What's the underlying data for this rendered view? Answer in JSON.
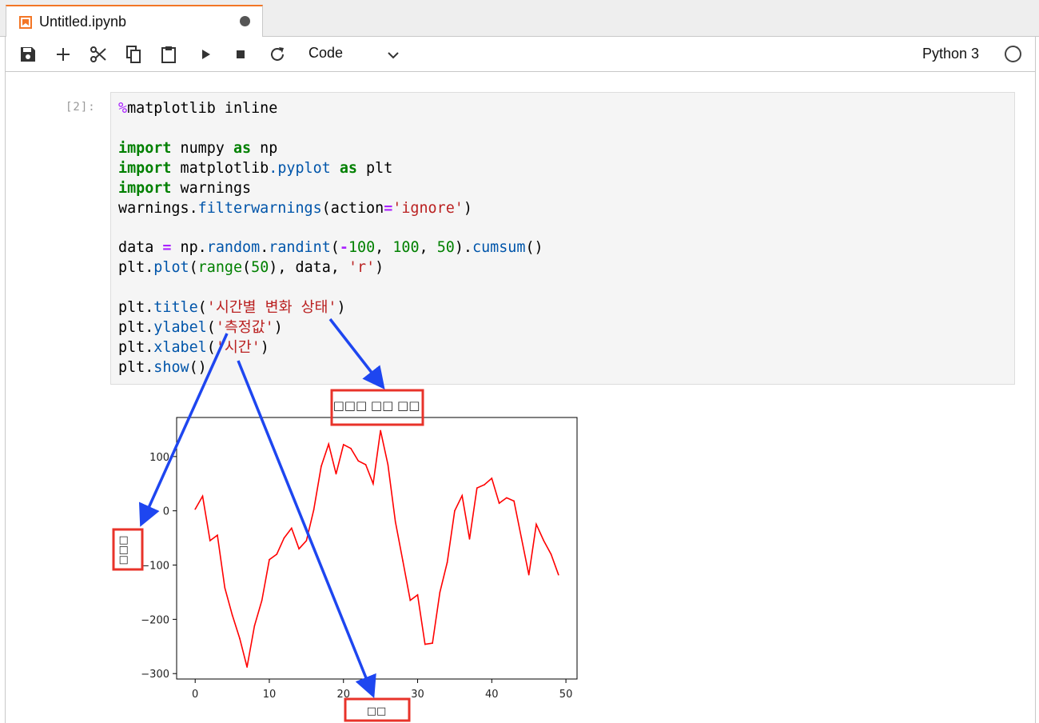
{
  "tab": {
    "title": "Untitled.ipynb",
    "icon": "notebook-icon"
  },
  "toolbar": {
    "buttons": [
      "save-icon",
      "add-icon",
      "cut-icon",
      "copy-icon",
      "paste-icon",
      "run-icon",
      "stop-icon",
      "restart-icon"
    ],
    "cell_type": "Code",
    "kernel_name": "Python 3"
  },
  "cell": {
    "prompt": "[2]:",
    "code_lines": [
      "%matplotlib inline",
      "",
      "import numpy as np",
      "import matplotlib.pyplot as plt",
      "import warnings",
      "warnings.filterwarnings(action='ignore')",
      "",
      "data = np.random.randint(-100, 100, 50).cumsum()",
      "plt.plot(range(50), data, 'r')",
      "",
      "plt.title('시간별 변화 상태')",
      "plt.ylabel('측정값')",
      "plt.xlabel('시간')",
      "plt.show()"
    ]
  },
  "chart_data": {
    "type": "line",
    "title": "□□□ □□ □□",
    "xlabel": "□□",
    "ylabel": "□□□",
    "x_ticks": [
      0,
      10,
      20,
      30,
      40,
      50
    ],
    "y_ticks": [
      100,
      0,
      -100,
      -200,
      -300
    ],
    "x_tick_labels": [
      "0",
      "10",
      "20",
      "30",
      "40",
      "50"
    ],
    "y_tick_labels": [
      "100",
      "0",
      "−100",
      "−200",
      "−300"
    ],
    "xlim": [
      -2.5,
      51.5
    ],
    "ylim": [
      -310,
      172
    ],
    "grid": false,
    "series": [
      {
        "color": "#ff0000",
        "x": [
          0,
          1,
          2,
          3,
          4,
          5,
          6,
          7,
          8,
          9,
          10,
          11,
          12,
          13,
          14,
          15,
          16,
          17,
          18,
          19,
          20,
          21,
          22,
          23,
          24,
          25,
          26,
          27,
          28,
          29,
          30,
          31,
          32,
          33,
          34,
          35,
          36,
          37,
          38,
          39,
          40,
          41,
          42,
          43,
          44,
          45,
          46,
          47,
          48,
          49
        ],
        "y": [
          3,
          27,
          -55,
          -45,
          -142,
          -192,
          -235,
          -288,
          -212,
          -165,
          -90,
          -80,
          -50,
          -32,
          -70,
          -55,
          2,
          82,
          123,
          68,
          122,
          115,
          92,
          85,
          50,
          148,
          85,
          -20,
          -92,
          -165,
          -155,
          -246,
          -244,
          -150,
          -95,
          0,
          28,
          -52,
          42,
          48,
          60,
          14,
          24,
          18,
          -50,
          -118,
          -25,
          -55,
          -80,
          -118
        ]
      }
    ],
    "annotations": [
      {
        "label": "title-highlight"
      },
      {
        "label": "ylabel-highlight"
      },
      {
        "label": "xlabel-highlight"
      }
    ]
  }
}
